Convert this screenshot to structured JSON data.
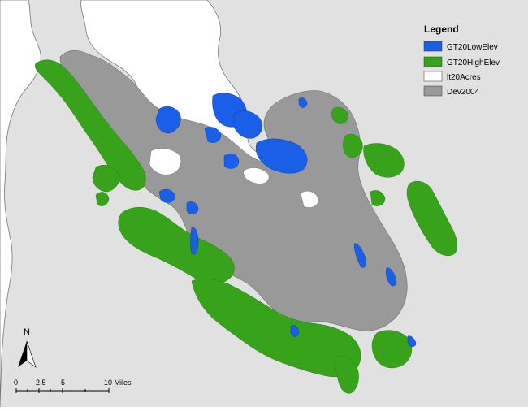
{
  "legend": {
    "title": "Legend",
    "items": [
      {
        "label": "GT20LowElev",
        "color": "#1a5fe8"
      },
      {
        "label": "GT20HighElev",
        "color": "#37a31a"
      },
      {
        "label": "lt20Acres",
        "color": "#ffffff"
      },
      {
        "label": "Dev2004",
        "color": "#999999"
      }
    ]
  },
  "north_arrow": {
    "label": "N"
  },
  "scale_bar": {
    "ticks": [
      "0",
      "2.5",
      "5",
      "10 Miles"
    ]
  },
  "colors": {
    "background_land": "#e1e1e1",
    "water": "#ffffff",
    "outline": "#6f6f6f"
  }
}
